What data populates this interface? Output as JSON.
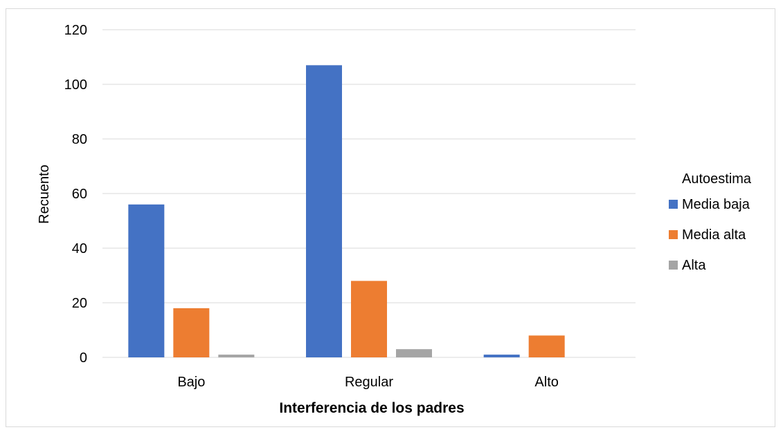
{
  "chart_data": {
    "type": "bar",
    "categories": [
      "Bajo",
      "Regular",
      "Alto"
    ],
    "series": [
      {
        "name": "Media baja",
        "values": [
          56,
          107,
          1
        ],
        "color": "#4472C4"
      },
      {
        "name": "Media alta",
        "values": [
          18,
          28,
          8
        ],
        "color": "#ED7D31"
      },
      {
        "name": "Alta",
        "values": [
          1,
          3,
          0
        ],
        "color": "#A5A5A5"
      }
    ],
    "xlabel": "Interferencia de los padres",
    "ylabel": "Recuento",
    "ylim": [
      0,
      120
    ],
    "yticks": [
      0,
      20,
      40,
      60,
      80,
      100,
      120
    ],
    "grid": true,
    "legend": {
      "title": "Autoestima",
      "position": "right"
    }
  }
}
